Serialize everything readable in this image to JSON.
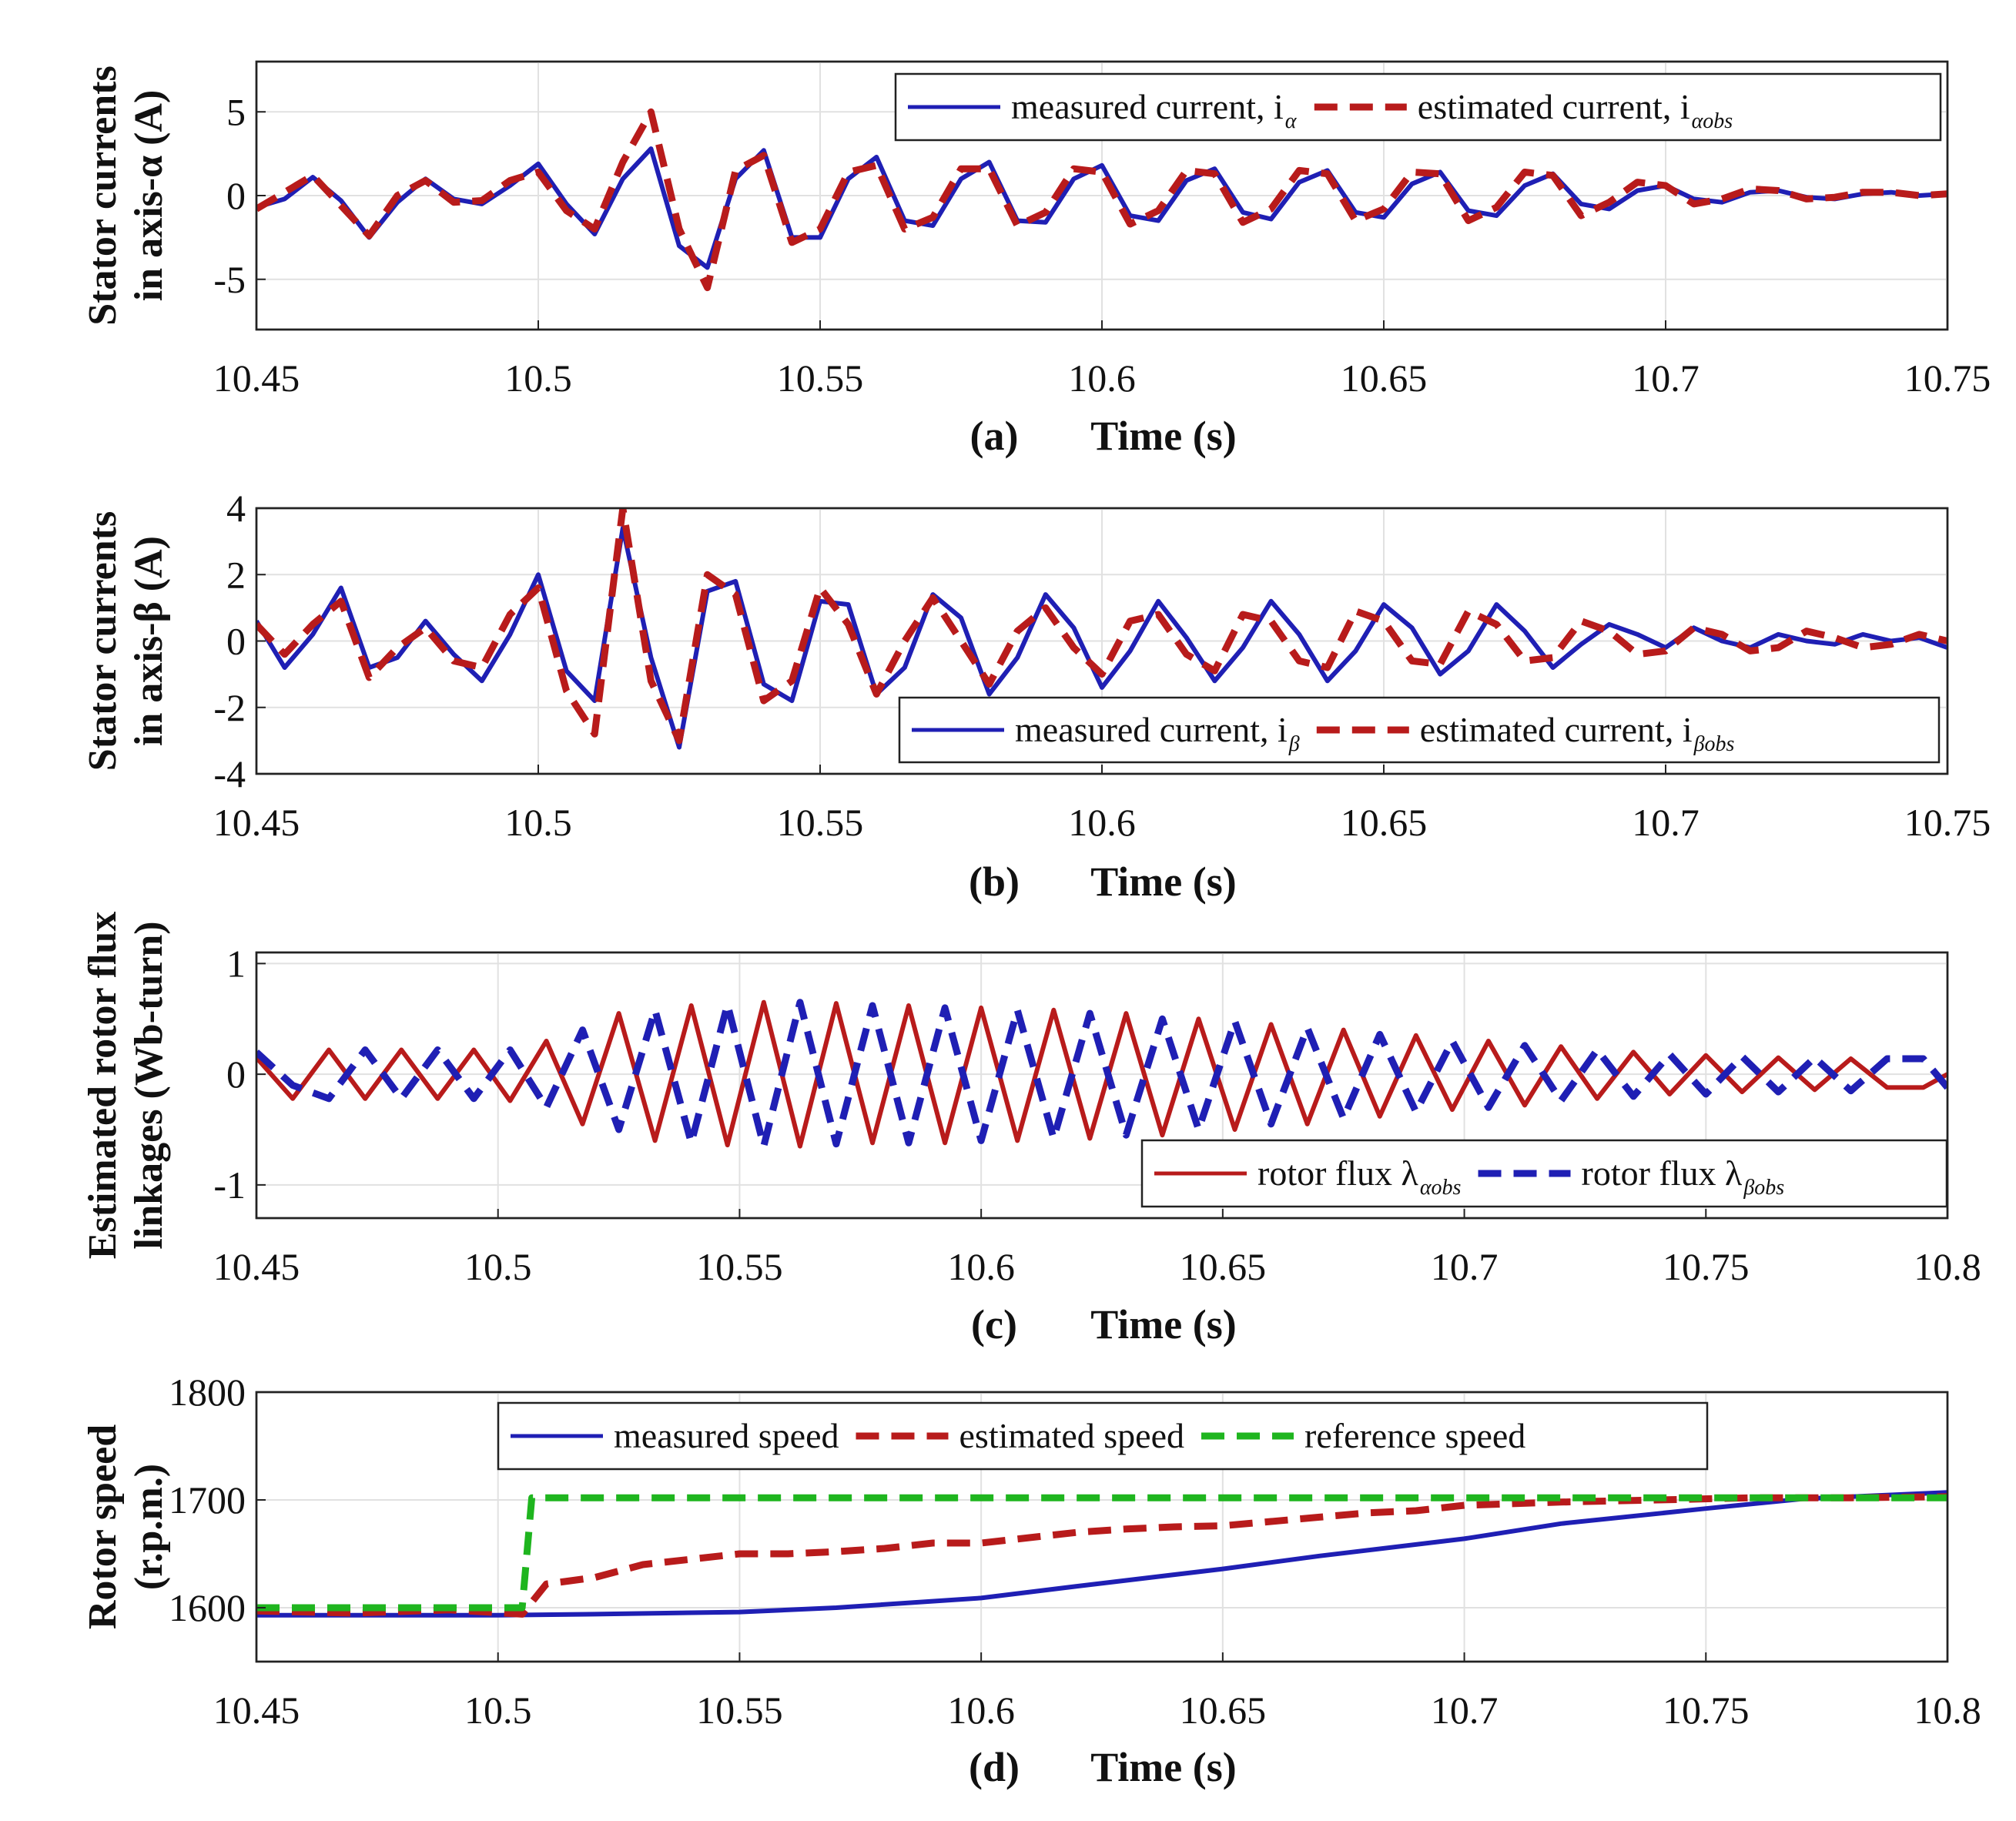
{
  "chart_data": [
    {
      "id": "a",
      "type": "line",
      "panel_label": "(a)",
      "xlabel": "Time (s)",
      "ylabel": [
        "Stator currents",
        "in axis-α (A)"
      ],
      "xlim": [
        10.45,
        10.75
      ],
      "ylim": [
        -8,
        8
      ],
      "xticks": [
        "10.45",
        "10.5",
        "10.55",
        "10.6",
        "10.65",
        "10.7",
        "10.75"
      ],
      "xtick_values": [
        10.45,
        10.5,
        10.55,
        10.6,
        10.65,
        10.7,
        10.75
      ],
      "yticks": [
        "-5",
        "0",
        "5"
      ],
      "ytick_values": [
        -5,
        0,
        5
      ],
      "grid": true,
      "legend_position": "top-right",
      "series": [
        {
          "name": "measured current, i",
          "subscript": "α",
          "color": "#1f1fb4",
          "style": "solid",
          "x": [
            10.45,
            10.455,
            10.46,
            10.465,
            10.47,
            10.475,
            10.48,
            10.485,
            10.49,
            10.495,
            10.5,
            10.505,
            10.51,
            10.515,
            10.52,
            10.525,
            10.53,
            10.535,
            10.54,
            10.545,
            10.55,
            10.555,
            10.56,
            10.565,
            10.57,
            10.575,
            10.58,
            10.585,
            10.59,
            10.595,
            10.6,
            10.605,
            10.61,
            10.615,
            10.62,
            10.625,
            10.63,
            10.635,
            10.64,
            10.645,
            10.65,
            10.655,
            10.66,
            10.665,
            10.67,
            10.675,
            10.68,
            10.685,
            10.69,
            10.695,
            10.7,
            10.705,
            10.71,
            10.715,
            10.72,
            10.725,
            10.73,
            10.735,
            10.74,
            10.745,
            10.75
          ],
          "y": [
            -0.7,
            -0.2,
            1.1,
            -0.3,
            -2.5,
            -0.4,
            1.0,
            -0.2,
            -0.5,
            0.6,
            1.9,
            -0.5,
            -2.3,
            1.0,
            2.8,
            -3.0,
            -4.3,
            1.0,
            2.7,
            -2.5,
            -2.5,
            1.0,
            2.3,
            -1.5,
            -1.8,
            1.0,
            2.0,
            -1.5,
            -1.6,
            1.0,
            1.8,
            -1.2,
            -1.5,
            0.9,
            1.6,
            -1.0,
            -1.4,
            0.8,
            1.5,
            -1.0,
            -1.3,
            0.7,
            1.4,
            -0.9,
            -1.2,
            0.6,
            1.3,
            -0.5,
            -0.8,
            0.3,
            0.6,
            -0.2,
            -0.4,
            0.2,
            0.3,
            -0.1,
            -0.2,
            0.1,
            0.2,
            0.0,
            0.1
          ]
        },
        {
          "name": "estimated current, i",
          "subscript": "αobs",
          "color": "#b81b1b",
          "style": "dashed",
          "x": [
            10.45,
            10.455,
            10.46,
            10.465,
            10.47,
            10.475,
            10.48,
            10.485,
            10.49,
            10.495,
            10.5,
            10.505,
            10.51,
            10.515,
            10.52,
            10.525,
            10.53,
            10.535,
            10.54,
            10.545,
            10.55,
            10.555,
            10.56,
            10.565,
            10.57,
            10.575,
            10.58,
            10.585,
            10.59,
            10.595,
            10.6,
            10.605,
            10.61,
            10.615,
            10.62,
            10.625,
            10.63,
            10.635,
            10.64,
            10.645,
            10.65,
            10.655,
            10.66,
            10.665,
            10.67,
            10.675,
            10.68,
            10.685,
            10.69,
            10.695,
            10.7,
            10.705,
            10.71,
            10.715,
            10.72,
            10.725,
            10.73,
            10.735,
            10.74,
            10.745,
            10.75
          ],
          "y": [
            -0.8,
            0.2,
            1.2,
            -0.6,
            -2.4,
            0.0,
            0.9,
            -0.4,
            -0.3,
            0.9,
            1.4,
            -0.9,
            -2.0,
            2.0,
            5.0,
            -2.0,
            -5.5,
            1.5,
            2.4,
            -2.8,
            -2.0,
            1.4,
            1.8,
            -2.0,
            -1.3,
            1.6,
            1.6,
            -1.8,
            -1.0,
            1.6,
            1.4,
            -1.7,
            -0.9,
            1.5,
            1.3,
            -1.6,
            -0.8,
            1.5,
            1.3,
            -1.5,
            -0.8,
            1.4,
            1.3,
            -1.5,
            -0.7,
            1.4,
            1.2,
            -1.2,
            -0.4,
            0.8,
            0.6,
            -0.5,
            -0.2,
            0.4,
            0.3,
            -0.2,
            -0.1,
            0.2,
            0.2,
            0.0,
            0.1
          ]
        }
      ]
    },
    {
      "id": "b",
      "type": "line",
      "panel_label": "(b)",
      "xlabel": "Time (s)",
      "ylabel": [
        "Stator currents",
        "in axis-β (A)"
      ],
      "xlim": [
        10.45,
        10.75
      ],
      "ylim": [
        -4,
        4
      ],
      "xticks": [
        "10.45",
        "10.5",
        "10.55",
        "10.6",
        "10.65",
        "10.7",
        "10.75"
      ],
      "xtick_values": [
        10.45,
        10.5,
        10.55,
        10.6,
        10.65,
        10.7,
        10.75
      ],
      "yticks": [
        "-4",
        "-2",
        "0",
        "2",
        "4"
      ],
      "ytick_values": [
        -4,
        -2,
        0,
        2,
        4
      ],
      "grid": true,
      "legend_position": "bottom-right",
      "series": [
        {
          "name": "measured current, i",
          "subscript": "β",
          "color": "#1f1fb4",
          "style": "solid",
          "x": [
            10.45,
            10.455,
            10.46,
            10.465,
            10.47,
            10.475,
            10.48,
            10.485,
            10.49,
            10.495,
            10.5,
            10.505,
            10.51,
            10.515,
            10.52,
            10.525,
            10.53,
            10.535,
            10.54,
            10.545,
            10.55,
            10.555,
            10.56,
            10.565,
            10.57,
            10.575,
            10.58,
            10.585,
            10.59,
            10.595,
            10.6,
            10.605,
            10.61,
            10.615,
            10.62,
            10.625,
            10.63,
            10.635,
            10.64,
            10.645,
            10.65,
            10.655,
            10.66,
            10.665,
            10.67,
            10.675,
            10.68,
            10.685,
            10.69,
            10.695,
            10.7,
            10.705,
            10.71,
            10.715,
            10.72,
            10.725,
            10.73,
            10.735,
            10.74,
            10.745,
            10.75
          ],
          "y": [
            0.6,
            -0.8,
            0.2,
            1.6,
            -0.8,
            -0.5,
            0.6,
            -0.4,
            -1.2,
            0.2,
            2.0,
            -0.9,
            -1.8,
            3.4,
            -0.5,
            -3.2,
            1.5,
            1.8,
            -1.3,
            -1.8,
            1.2,
            1.1,
            -1.6,
            -0.8,
            1.4,
            0.7,
            -1.6,
            -0.5,
            1.4,
            0.4,
            -1.4,
            -0.3,
            1.2,
            0.1,
            -1.2,
            -0.2,
            1.2,
            0.2,
            -1.2,
            -0.3,
            1.1,
            0.4,
            -1.0,
            -0.3,
            1.1,
            0.3,
            -0.8,
            -0.1,
            0.5,
            0.2,
            -0.2,
            0.4,
            0.0,
            -0.2,
            0.2,
            0.0,
            -0.1,
            0.2,
            0.0,
            0.1,
            -0.2
          ]
        },
        {
          "name": "estimated current, i",
          "subscript": "βobs",
          "color": "#b81b1b",
          "style": "dashed",
          "x": [
            10.45,
            10.455,
            10.46,
            10.465,
            10.47,
            10.475,
            10.48,
            10.485,
            10.49,
            10.495,
            10.5,
            10.505,
            10.51,
            10.515,
            10.52,
            10.525,
            10.53,
            10.535,
            10.54,
            10.545,
            10.55,
            10.555,
            10.56,
            10.565,
            10.57,
            10.575,
            10.58,
            10.585,
            10.59,
            10.595,
            10.6,
            10.605,
            10.61,
            10.615,
            10.62,
            10.625,
            10.63,
            10.635,
            10.64,
            10.645,
            10.65,
            10.655,
            10.66,
            10.665,
            10.67,
            10.675,
            10.68,
            10.685,
            10.69,
            10.695,
            10.7,
            10.705,
            10.71,
            10.715,
            10.72,
            10.725,
            10.73,
            10.735,
            10.74,
            10.745,
            10.75
          ],
          "y": [
            0.5,
            -0.4,
            0.5,
            1.2,
            -1.1,
            -0.2,
            0.4,
            -0.6,
            -0.8,
            0.8,
            1.6,
            -1.5,
            -2.8,
            4.0,
            -1.2,
            -3.0,
            2.0,
            1.4,
            -1.8,
            -1.2,
            1.6,
            0.5,
            -1.6,
            0.0,
            1.3,
            0.0,
            -1.3,
            0.3,
            1.0,
            -0.2,
            -1.0,
            0.6,
            0.8,
            -0.4,
            -0.9,
            0.8,
            0.6,
            -0.6,
            -0.8,
            0.9,
            0.6,
            -0.6,
            -0.7,
            0.9,
            0.5,
            -0.6,
            -0.5,
            0.6,
            0.3,
            -0.4,
            -0.3,
            0.4,
            0.2,
            -0.3,
            -0.2,
            0.3,
            0.1,
            -0.2,
            -0.1,
            0.2,
            0.0
          ]
        }
      ]
    },
    {
      "id": "c",
      "type": "line",
      "panel_label": "(c)",
      "xlabel": "Time (s)",
      "ylabel": [
        "Estimated rotor flux",
        "linkages (Wb-turn)"
      ],
      "xlim": [
        10.45,
        10.8
      ],
      "ylim": [
        -1.3,
        1.1
      ],
      "xticks": [
        "10.45",
        "10.5",
        "10.55",
        "10.6",
        "10.65",
        "10.7",
        "10.75",
        "10.8"
      ],
      "xtick_values": [
        10.45,
        10.5,
        10.55,
        10.6,
        10.65,
        10.7,
        10.75,
        10.8
      ],
      "yticks": [
        "-1",
        "0",
        "1"
      ],
      "ytick_values": [
        -1,
        0,
        1
      ],
      "grid": true,
      "legend_position": "bottom-right",
      "series": [
        {
          "name": "rotor flux λ",
          "subscript": "αobs",
          "color": "#b81b1b",
          "style": "solid",
          "x": [
            10.45,
            10.4575,
            10.465,
            10.4725,
            10.48,
            10.4875,
            10.495,
            10.5025,
            10.51,
            10.5175,
            10.525,
            10.5325,
            10.54,
            10.5475,
            10.555,
            10.5625,
            10.57,
            10.5775,
            10.585,
            10.5925,
            10.6,
            10.6075,
            10.615,
            10.6225,
            10.63,
            10.6375,
            10.645,
            10.6525,
            10.66,
            10.6675,
            10.675,
            10.6825,
            10.69,
            10.6975,
            10.705,
            10.7125,
            10.72,
            10.7275,
            10.735,
            10.7425,
            10.75,
            10.7575,
            10.765,
            10.7725,
            10.78,
            10.7875,
            10.795,
            10.8
          ],
          "y": [
            0.15,
            -0.22,
            0.22,
            -0.22,
            0.22,
            -0.22,
            0.22,
            -0.24,
            0.3,
            -0.45,
            0.55,
            -0.6,
            0.62,
            -0.64,
            0.65,
            -0.65,
            0.64,
            -0.62,
            0.62,
            -0.62,
            0.6,
            -0.6,
            0.58,
            -0.58,
            0.55,
            -0.55,
            0.5,
            -0.5,
            0.45,
            -0.45,
            0.4,
            -0.38,
            0.35,
            -0.32,
            0.3,
            -0.28,
            0.25,
            -0.22,
            0.2,
            -0.18,
            0.17,
            -0.16,
            0.15,
            -0.14,
            0.14,
            -0.12,
            -0.12,
            0.0
          ]
        },
        {
          "name": "rotor flux λ",
          "subscript": "βobs",
          "color": "#1f1fb4",
          "style": "dashed",
          "x": [
            10.45,
            10.4575,
            10.465,
            10.4725,
            10.48,
            10.4875,
            10.495,
            10.5025,
            10.51,
            10.5175,
            10.525,
            10.5325,
            10.54,
            10.5475,
            10.555,
            10.5625,
            10.57,
            10.5775,
            10.585,
            10.5925,
            10.6,
            10.6075,
            10.615,
            10.6225,
            10.63,
            10.6375,
            10.645,
            10.6525,
            10.66,
            10.6675,
            10.675,
            10.6825,
            10.69,
            10.6975,
            10.705,
            10.7125,
            10.72,
            10.7275,
            10.735,
            10.7425,
            10.75,
            10.7575,
            10.765,
            10.7725,
            10.78,
            10.7875,
            10.795,
            10.8
          ],
          "y": [
            0.2,
            -0.1,
            -0.22,
            0.22,
            -0.22,
            0.22,
            -0.22,
            0.22,
            -0.3,
            0.4,
            -0.5,
            0.58,
            -0.62,
            0.63,
            -0.65,
            0.65,
            -0.63,
            0.62,
            -0.62,
            0.6,
            -0.6,
            0.58,
            -0.58,
            0.55,
            -0.55,
            0.5,
            -0.5,
            0.48,
            -0.45,
            0.42,
            -0.4,
            0.36,
            -0.34,
            0.3,
            -0.3,
            0.26,
            -0.24,
            0.22,
            -0.2,
            0.18,
            -0.18,
            0.16,
            -0.16,
            0.15,
            -0.15,
            0.14,
            0.14,
            -0.12
          ]
        }
      ]
    },
    {
      "id": "d",
      "type": "line",
      "panel_label": "(d)",
      "xlabel": "Time (s)",
      "ylabel": [
        "Rotor speed",
        "(r.p.m.)"
      ],
      "xlim": [
        10.45,
        10.8
      ],
      "ylim": [
        1550,
        1800
      ],
      "xticks": [
        "10.45",
        "10.5",
        "10.55",
        "10.6",
        "10.65",
        "10.7",
        "10.75",
        "10.8"
      ],
      "xtick_values": [
        10.45,
        10.5,
        10.55,
        10.6,
        10.65,
        10.7,
        10.75,
        10.8
      ],
      "yticks": [
        "1600",
        "1700",
        "1800"
      ],
      "ytick_values": [
        1600,
        1700,
        1800
      ],
      "grid": true,
      "legend_position": "top-center",
      "series": [
        {
          "name": "measured speed",
          "color": "#1f1fb4",
          "style": "solid",
          "x": [
            10.45,
            10.5,
            10.52,
            10.55,
            10.57,
            10.6,
            10.62,
            10.65,
            10.67,
            10.7,
            10.72,
            10.75,
            10.77,
            10.8
          ],
          "y": [
            1593,
            1593,
            1594,
            1596,
            1600,
            1609,
            1620,
            1636,
            1648,
            1664,
            1678,
            1692,
            1701,
            1707
          ]
        },
        {
          "name": "estimated speed",
          "color": "#b81b1b",
          "style": "dashed",
          "x": [
            10.45,
            10.47,
            10.49,
            10.505,
            10.51,
            10.515,
            10.52,
            10.53,
            10.54,
            10.55,
            10.56,
            10.57,
            10.58,
            10.59,
            10.6,
            10.61,
            10.62,
            10.63,
            10.64,
            10.65,
            10.66,
            10.67,
            10.68,
            10.69,
            10.7,
            10.72,
            10.74,
            10.76,
            10.78,
            10.8
          ],
          "y": [
            1597,
            1595,
            1598,
            1594,
            1622,
            1625,
            1628,
            1640,
            1645,
            1650,
            1650,
            1652,
            1655,
            1660,
            1660,
            1665,
            1670,
            1673,
            1675,
            1676,
            1680,
            1684,
            1688,
            1690,
            1695,
            1698,
            1700,
            1702,
            1702,
            1703
          ]
        },
        {
          "name": "reference speed",
          "color": "#1fb51f",
          "style": "dashed",
          "x": [
            10.45,
            10.505,
            10.507,
            10.8
          ],
          "y": [
            1600,
            1600,
            1702,
            1702
          ]
        }
      ]
    }
  ]
}
